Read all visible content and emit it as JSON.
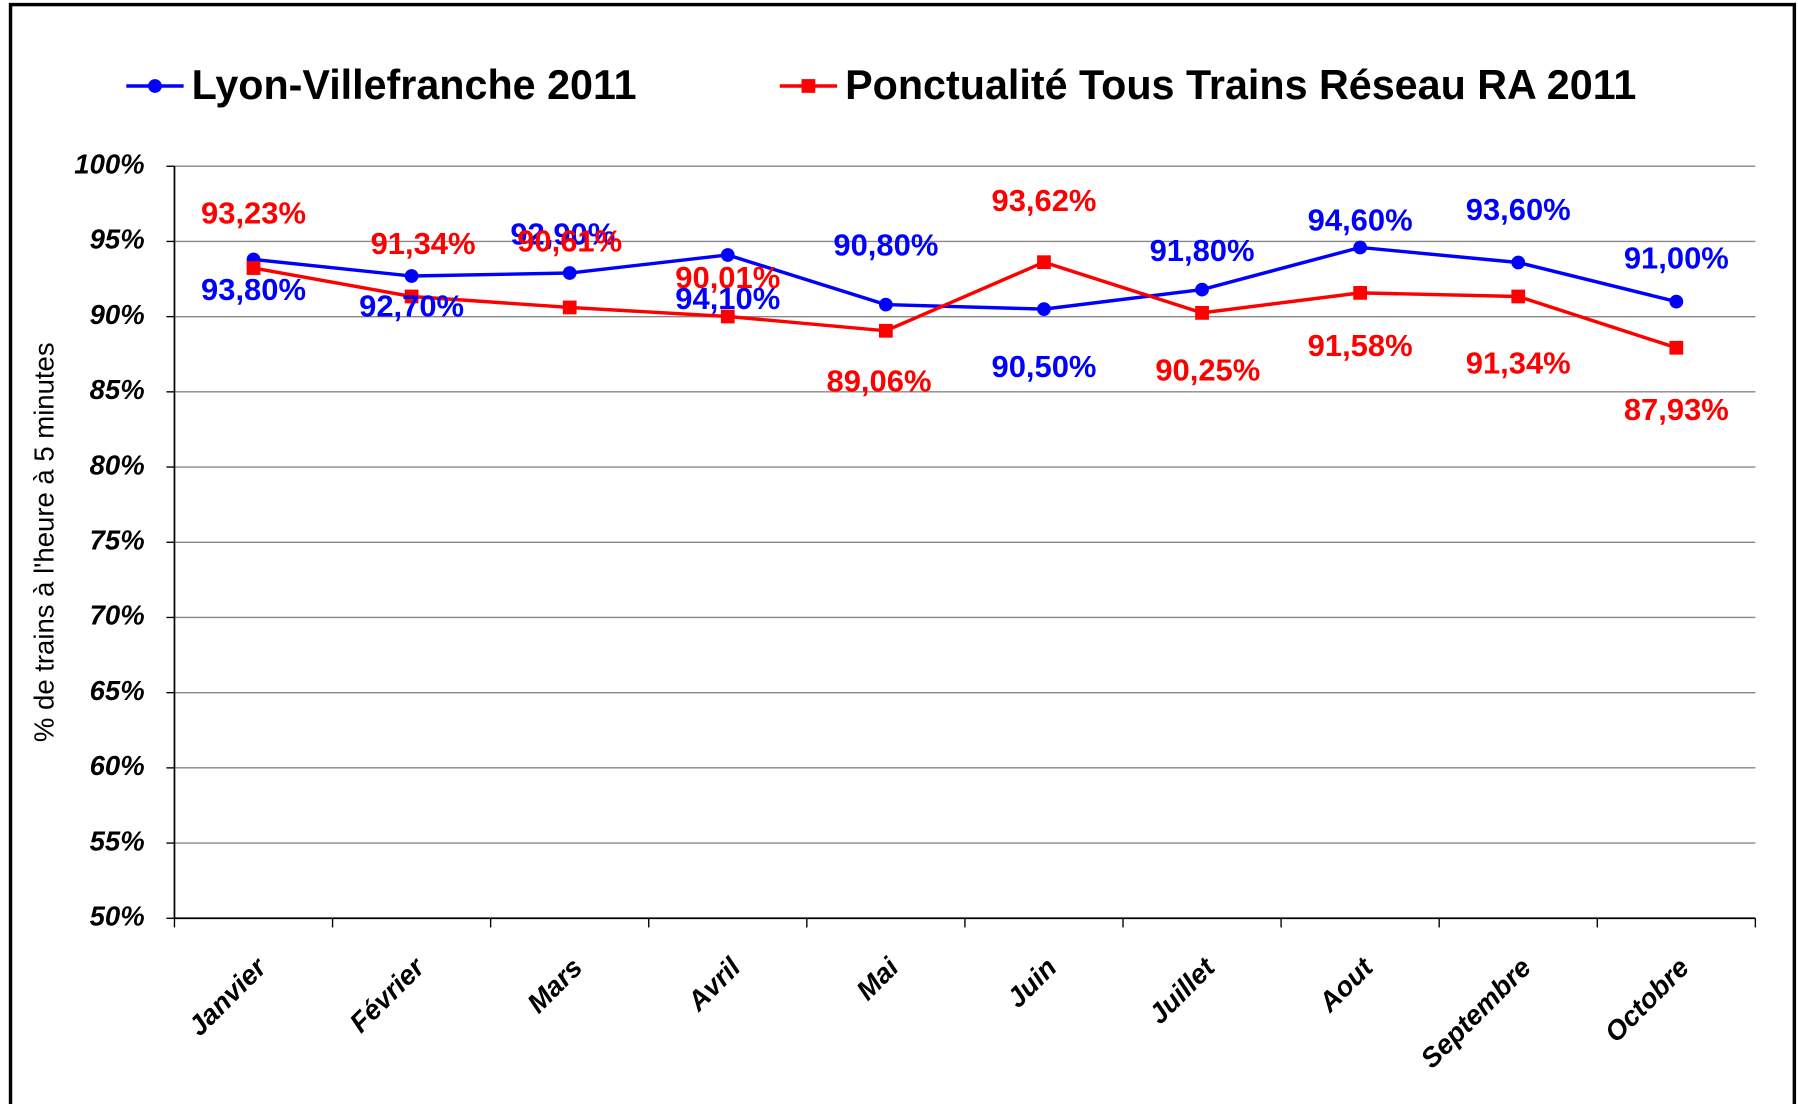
{
  "chart_data": {
    "type": "line",
    "y_axis_label": "% de trains à l'heure à 5 minutes",
    "categories": [
      "Janvier",
      "Février",
      "Mars",
      "Avril",
      "Mai",
      "Juin",
      "Juillet",
      "Aout",
      "Septembre",
      "Octobre"
    ],
    "series": [
      {
        "name": "Lyon-Villefranche 2011",
        "color": "#0000ff",
        "marker": "circle",
        "values": [
          93.8,
          92.7,
          92.9,
          94.1,
          90.8,
          90.5,
          91.8,
          94.6,
          93.6,
          91.0
        ],
        "value_labels": [
          "93,80%",
          "92,70%",
          "92,90%",
          "94,10%",
          "90,80%",
          "90,50%",
          "91,80%",
          "94,60%",
          "93,60%",
          "91,00%"
        ]
      },
      {
        "name": "Ponctualité Tous Trains Réseau RA 2011",
        "color": "#ff0000",
        "marker": "square",
        "values": [
          93.23,
          91.34,
          90.61,
          90.01,
          89.06,
          93.62,
          90.25,
          91.58,
          91.34,
          87.93
        ],
        "value_labels": [
          "93,23%",
          "91,34%",
          "90,61%",
          "90,01%",
          "89,06%",
          "93,62%",
          "90,25%",
          "91,58%",
          "91,34%",
          "87,93%"
        ]
      }
    ],
    "ylim": [
      50,
      100
    ],
    "yticks": [
      {
        "value": 50,
        "label": "50%"
      },
      {
        "value": 55,
        "label": "55%"
      },
      {
        "value": 60,
        "label": "60%"
      },
      {
        "value": 65,
        "label": "65%"
      },
      {
        "value": 70,
        "label": "70%"
      },
      {
        "value": 75,
        "label": "75%"
      },
      {
        "value": 80,
        "label": "80%"
      },
      {
        "value": 85,
        "label": "85%"
      },
      {
        "value": 90,
        "label": "90%"
      },
      {
        "value": 95,
        "label": "95%"
      },
      {
        "value": 100,
        "label": "100%"
      }
    ],
    "grid": true,
    "legend": "top"
  }
}
